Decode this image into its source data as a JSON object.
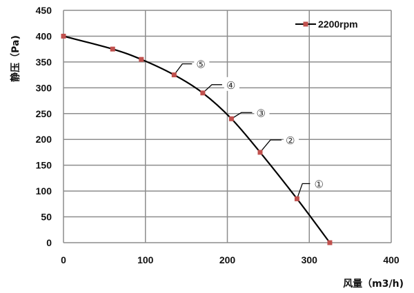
{
  "chart_data": {
    "type": "line",
    "title": "",
    "xlabel": "风量（m3/h)",
    "ylabel": "静压（Pa)",
    "xlim": [
      0,
      400
    ],
    "ylim": [
      0,
      450
    ],
    "xticks": [
      0,
      100,
      200,
      300,
      400
    ],
    "yticks": [
      0,
      50,
      100,
      150,
      200,
      250,
      300,
      350,
      400,
      450
    ],
    "grid": true,
    "legend_position": "top-right",
    "series": [
      {
        "name": "2200rpm",
        "color": "#c0504d",
        "line_color": "#000000",
        "x": [
          0,
          60,
          95,
          135,
          170,
          205,
          240,
          285,
          325
        ],
        "y": [
          400,
          375,
          355,
          325,
          290,
          240,
          175,
          85,
          0
        ]
      }
    ],
    "annotations": [
      {
        "text": "⑤",
        "x": 135,
        "y": 325
      },
      {
        "text": "④",
        "x": 170,
        "y": 290
      },
      {
        "text": "③",
        "x": 205,
        "y": 240
      },
      {
        "text": "②",
        "x": 240,
        "y": 175
      },
      {
        "text": "①",
        "x": 285,
        "y": 85
      }
    ]
  }
}
